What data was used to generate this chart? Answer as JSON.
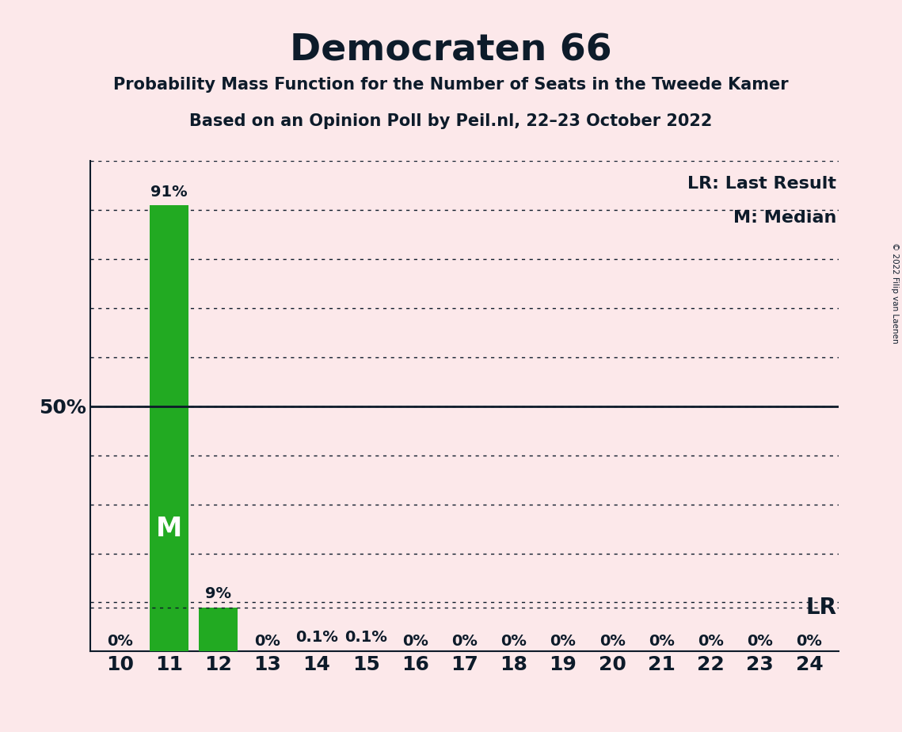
{
  "title": "Democraten 66",
  "subtitle1": "Probability Mass Function for the Number of Seats in the Tweede Kamer",
  "subtitle2": "Based on an Opinion Poll by Peil.nl, 22–23 October 2022",
  "copyright": "© 2022 Filip van Laenen",
  "seats": [
    10,
    11,
    12,
    13,
    14,
    15,
    16,
    17,
    18,
    19,
    20,
    21,
    22,
    23,
    24
  ],
  "probabilities": [
    0.0,
    91.0,
    9.0,
    0.0,
    0.1,
    0.1,
    0.0,
    0.0,
    0.0,
    0.0,
    0.0,
    0.0,
    0.0,
    0.0,
    0.0
  ],
  "bar_labels": [
    "0%",
    "91%",
    "9%",
    "0%",
    "0.1%",
    "0.1%",
    "0%",
    "0%",
    "0%",
    "0%",
    "0%",
    "0%",
    "0%",
    "0%",
    "0%"
  ],
  "median_seat": 11,
  "last_result_value": 9.0,
  "bar_color": "#22aa22",
  "background_color": "#fce8ea",
  "text_color": "#0d1b2a",
  "fifty_pct_line": 50.0,
  "ylim": [
    0,
    100
  ],
  "legend_lr": "LR: Last Result",
  "legend_m": "M: Median"
}
